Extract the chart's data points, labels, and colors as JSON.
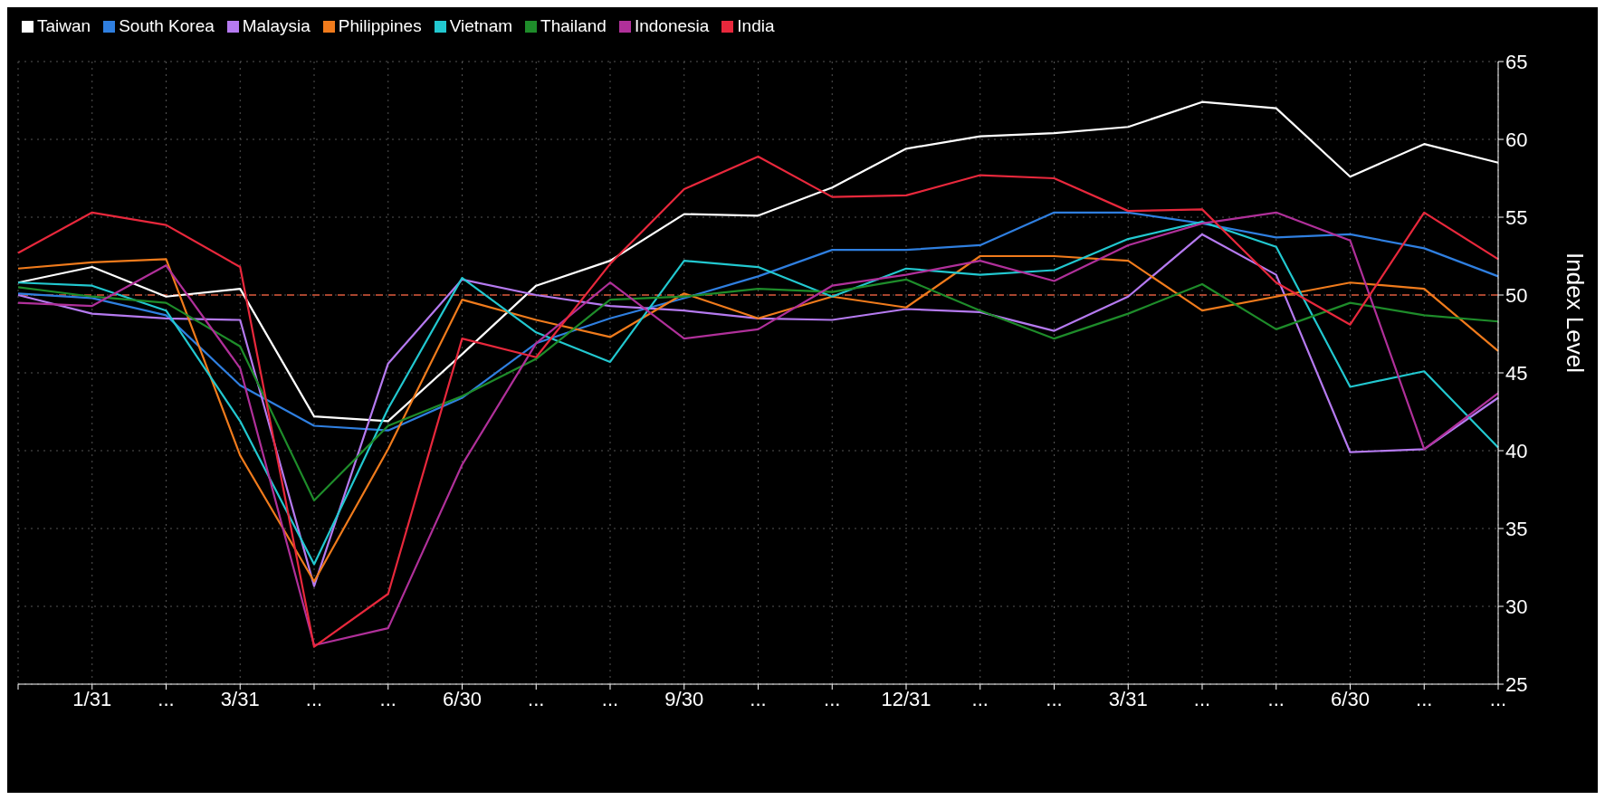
{
  "chart_data": {
    "type": "line",
    "ylabel": "Index Level",
    "categories": [
      null,
      "1/31",
      "...",
      "3/31",
      "...",
      "...",
      "6/30",
      "...",
      "...",
      "9/30",
      "...",
      "...",
      "12/31",
      "...",
      "...",
      "3/31",
      "...",
      "...",
      "6/30",
      "...",
      "..."
    ],
    "series": [
      {
        "name": "Taiwan",
        "color": "#ffffff",
        "values": [
          50.8,
          51.8,
          49.9,
          50.4,
          42.2,
          41.9,
          46.2,
          50.6,
          52.2,
          55.2,
          55.1,
          56.9,
          59.4,
          60.2,
          60.4,
          60.8,
          62.4,
          62.0,
          57.6,
          59.7,
          58.5
        ]
      },
      {
        "name": "South Korea",
        "color": "#2f7fe0",
        "values": [
          50.1,
          49.8,
          48.7,
          44.2,
          41.6,
          41.3,
          43.4,
          46.9,
          48.5,
          49.8,
          51.2,
          52.9,
          52.9,
          53.2,
          55.3,
          55.3,
          54.6,
          53.7,
          53.9,
          53.0,
          51.2
        ]
      },
      {
        "name": "Malaysia",
        "color": "#b57af0",
        "values": [
          50.0,
          48.8,
          48.5,
          48.4,
          31.3,
          45.6,
          51.0,
          50.0,
          49.3,
          49.0,
          48.5,
          48.4,
          49.1,
          48.9,
          47.7,
          49.9,
          53.9,
          51.3,
          39.9,
          40.1,
          43.4
        ]
      },
      {
        "name": "Philippines",
        "color": "#f07b1c",
        "values": [
          51.7,
          52.1,
          52.3,
          39.7,
          31.6,
          40.1,
          49.7,
          48.4,
          47.3,
          50.1,
          48.5,
          49.9,
          49.2,
          52.5,
          52.5,
          52.2,
          49.0,
          49.9,
          50.8,
          50.4,
          46.4
        ]
      },
      {
        "name": "Vietnam",
        "color": "#22c8d0",
        "values": [
          50.8,
          50.6,
          49.0,
          41.9,
          32.7,
          42.7,
          51.1,
          47.6,
          45.7,
          52.2,
          51.8,
          49.9,
          51.7,
          51.3,
          51.6,
          53.6,
          54.7,
          53.1,
          44.1,
          45.1,
          40.2
        ]
      },
      {
        "name": "Thailand",
        "color": "#1e8c2a",
        "values": [
          50.5,
          49.9,
          49.5,
          46.7,
          36.8,
          41.6,
          43.5,
          45.9,
          49.7,
          49.9,
          50.4,
          50.2,
          51.0,
          49.0,
          47.2,
          48.8,
          50.7,
          47.8,
          49.5,
          48.7,
          48.3
        ]
      },
      {
        "name": "Indonesia",
        "color": "#b0309a",
        "values": [
          49.5,
          49.3,
          51.9,
          45.3,
          27.5,
          28.6,
          39.1,
          46.9,
          50.8,
          47.2,
          47.8,
          50.6,
          51.3,
          52.2,
          50.9,
          53.2,
          54.6,
          55.3,
          53.5,
          40.1,
          43.7
        ]
      },
      {
        "name": "India",
        "color": "#e8283c",
        "values": [
          52.7,
          55.3,
          54.5,
          51.8,
          27.4,
          30.8,
          47.2,
          46.0,
          52.0,
          56.8,
          58.9,
          56.3,
          56.4,
          57.7,
          57.5,
          55.4,
          55.5,
          50.8,
          48.1,
          55.3,
          52.3
        ]
      }
    ],
    "ylim": [
      25,
      65
    ],
    "yticks": [
      25,
      30,
      35,
      40,
      45,
      50,
      55,
      60,
      65
    ],
    "ref_lines": [
      {
        "axis": "y",
        "value": 50,
        "color": "#a8452e",
        "line_style": "dashed"
      }
    ],
    "grid": true,
    "legend": "top left",
    "marker": "none",
    "line_style": "solid"
  }
}
